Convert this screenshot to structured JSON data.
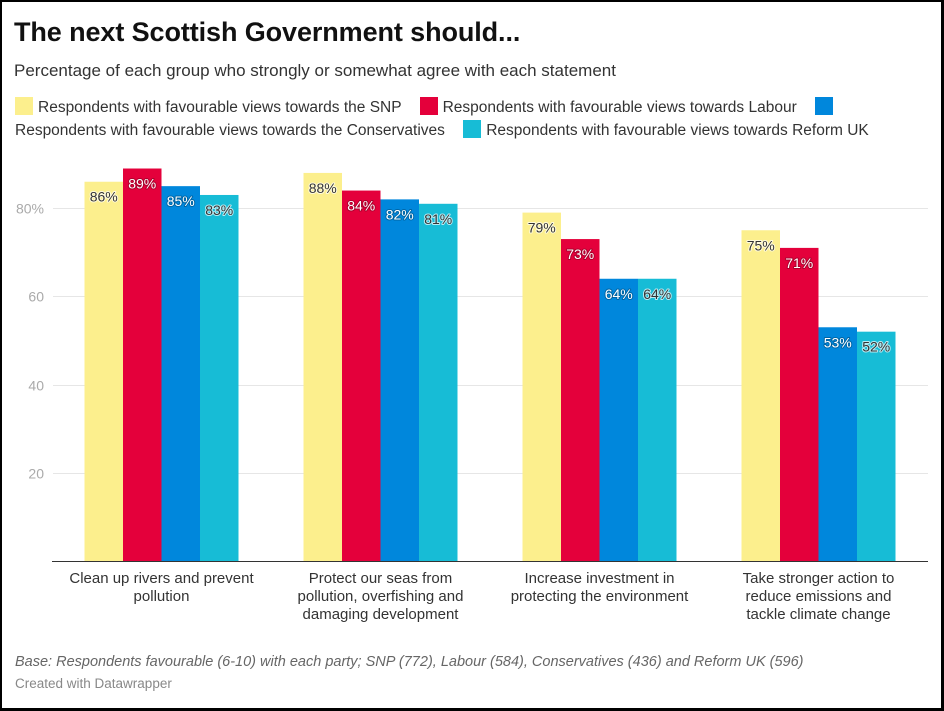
{
  "chart_data": {
    "type": "bar",
    "title": "The next Scottish Government should...",
    "subtitle": "Percentage of each group who strongly or somewhat agree with each statement",
    "xlabel": "",
    "ylabel": "",
    "categories": [
      "Clean up rivers and prevent pollution",
      "Protect our seas from pollution, overfishing and damaging development",
      "Increase investment in protecting the environment",
      "Take stronger action to reduce emissions and tackle climate change"
    ],
    "category_lines": [
      [
        "Clean up rivers and prevent",
        "pollution"
      ],
      [
        "Protect our seas from",
        "pollution, overfishing and",
        "damaging development"
      ],
      [
        "Increase investment in",
        "protecting the environment"
      ],
      [
        "Take stronger action to",
        "reduce emissions and",
        "tackle climate change"
      ]
    ],
    "series": [
      {
        "name": "Respondents with favourable views towards the SNP",
        "color": "#FCEF8D",
        "label_color": "#333333",
        "values": [
          86,
          88,
          79,
          75
        ]
      },
      {
        "name": "Respondents with favourable views towards Labour",
        "color": "#E4003B",
        "label_color": "#FFFFFF",
        "values": [
          89,
          84,
          73,
          71
        ]
      },
      {
        "name": "Respondents with favourable views towards the Conservatives",
        "color": "#0087DC",
        "label_color": "#FFFFFF",
        "values": [
          85,
          82,
          64,
          53
        ]
      },
      {
        "name": "Respondents with favourable views towards Reform UK",
        "color": "#17BCD6",
        "label_color": "#333333",
        "values": [
          83,
          81,
          64,
          52
        ]
      }
    ],
    "value_suffix": "%",
    "yticks": [
      {
        "value": 20,
        "label": "20"
      },
      {
        "value": 40,
        "label": "40"
      },
      {
        "value": 60,
        "label": "60"
      },
      {
        "value": 80,
        "label": "80%"
      }
    ],
    "ylim": [
      0,
      90
    ],
    "grid": true,
    "legend_position": "top"
  },
  "footer": {
    "note": "Base: Respondents favourable (6-10) with each party; SNP (772), Labour (584), Conservatives (436) and Reform UK (596)",
    "credit": "Created with Datawrapper"
  }
}
